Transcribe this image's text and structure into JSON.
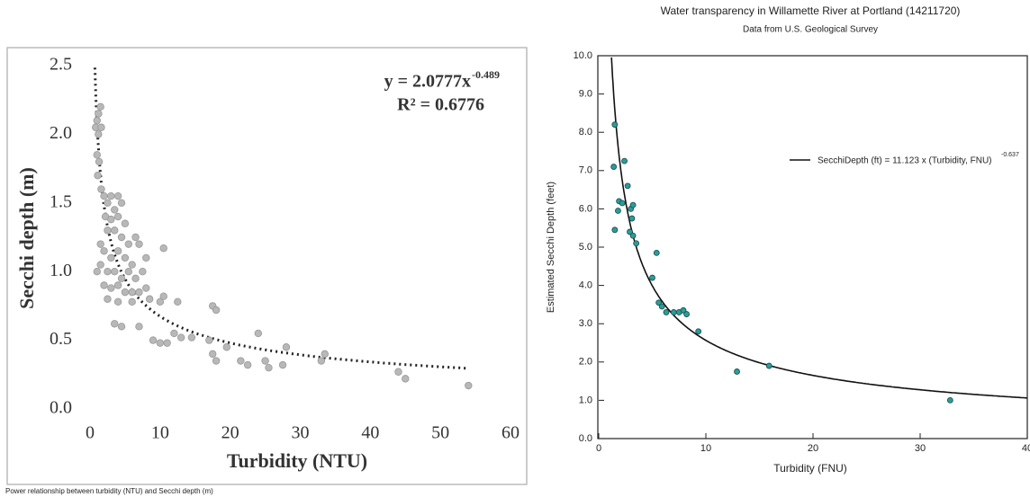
{
  "chart_data": [
    {
      "type": "scatter",
      "xlabel": "Turbidity (NTU)",
      "ylabel": "Secchi depth (m)",
      "caption": "Power relationship between turbidity (NTU) and Secchi depth (m)",
      "equation": "y = 2.0777x",
      "equation_exponent": "-0.489",
      "r_squared": "R² = 0.6776",
      "fit": {
        "coefficient": 2.0777,
        "exponent": -0.489
      },
      "xlim": [
        0,
        60
      ],
      "ylim": [
        0,
        2.5
      ],
      "xticks": [
        0,
        10,
        20,
        30,
        40,
        50,
        60
      ],
      "yticks": [
        {
          "value": 0,
          "label": "0.0"
        },
        0.5,
        {
          "value": 1,
          "label": "1.0"
        },
        1.5,
        {
          "value": 2,
          "label": "2.0"
        },
        2.5
      ],
      "x": [
        0.8,
        1.0,
        1.2,
        1.5,
        1.2,
        1.6,
        1.0,
        1.3,
        1.1,
        1.6,
        2.0,
        2.5,
        3.0,
        4.0,
        4.5,
        3.5,
        2.2,
        3.0,
        4.0,
        5.0,
        2.5,
        3.5,
        4.5,
        5.5,
        6.5,
        7.0,
        1.5,
        2.0,
        3.0,
        4.0,
        5.0,
        6.0,
        8.0,
        10.5,
        1.0,
        1.5,
        2.5,
        3.5,
        4.5,
        5.5,
        6.5,
        7.5,
        2.0,
        3.0,
        4.0,
        5.0,
        6.0,
        7.0,
        8.0,
        2.5,
        4.0,
        6.0,
        8.5,
        10.0,
        10.5,
        12.5,
        3.5,
        4.5,
        7.0,
        9.0,
        10.0,
        11.0,
        12.0,
        13.0,
        14.5,
        17.5,
        18.0,
        17.0,
        17.5,
        18.0,
        19.5,
        21.5,
        22.5,
        24.0,
        25.0,
        25.5,
        27.5,
        28.0,
        33.0,
        33.5,
        44.0,
        45.0,
        54.0
      ],
      "series": [
        {
          "color": "#b8b8b8",
          "values": [
            2.05,
            2.1,
            2.15,
            2.2,
            2.0,
            2.05,
            1.85,
            1.8,
            1.7,
            1.6,
            1.55,
            1.5,
            1.55,
            1.55,
            1.5,
            1.45,
            1.4,
            1.38,
            1.4,
            1.35,
            1.3,
            1.3,
            1.25,
            1.2,
            1.25,
            1.2,
            1.2,
            1.15,
            1.1,
            1.15,
            1.1,
            1.05,
            1.1,
            1.17,
            1.0,
            1.05,
            1.0,
            1.0,
            0.95,
            1.0,
            0.95,
            1.0,
            0.9,
            0.88,
            0.9,
            0.85,
            0.85,
            0.85,
            0.88,
            0.8,
            0.78,
            0.78,
            0.8,
            0.78,
            0.82,
            0.78,
            0.62,
            0.6,
            0.6,
            0.5,
            0.48,
            0.48,
            0.55,
            0.52,
            0.52,
            0.75,
            0.72,
            0.5,
            0.4,
            0.35,
            0.45,
            0.35,
            0.32,
            0.55,
            0.35,
            0.3,
            0.32,
            0.45,
            0.35,
            0.4,
            0.27,
            0.22,
            0.17
          ]
        }
      ]
    },
    {
      "type": "scatter",
      "title": "Water transparency in Willamette River at Portland (14211720)",
      "subtitle": "Data from U.S. Geological Survey",
      "xlabel": "Turbidity (FNU)",
      "ylabel": "Estimated Secchi Depth (feet)",
      "equation": "SecchiDepth (ft) = 11.123 x (Turbidity, FNU)",
      "equation_exponent": "-0.637",
      "fit": {
        "coefficient": 11.123,
        "exponent": -0.637
      },
      "xlim": [
        0,
        40
      ],
      "ylim": [
        0,
        10
      ],
      "xticks": [
        0,
        10,
        20,
        30,
        40
      ],
      "yticks": [
        {
          "value": 0,
          "label": "0.0"
        },
        {
          "value": 1,
          "label": "1.0"
        },
        {
          "value": 2,
          "label": "2.0"
        },
        {
          "value": 3,
          "label": "3.0"
        },
        {
          "value": 4,
          "label": "4.0"
        },
        {
          "value": 5,
          "label": "5.0"
        },
        {
          "value": 6,
          "label": "6.0"
        },
        {
          "value": 7,
          "label": "7.0"
        },
        {
          "value": 8,
          "label": "8.0"
        },
        {
          "value": 9,
          "label": "9.0"
        },
        {
          "value": 10,
          "label": "10.0"
        }
      ],
      "x": [
        1.5,
        1.4,
        2.4,
        1.5,
        1.9,
        2.2,
        1.8,
        2.7,
        3.0,
        3.1,
        3.2,
        2.9,
        3.2,
        3.5,
        5.4,
        5.0,
        5.6,
        5.9,
        6.3,
        7.0,
        7.5,
        7.9,
        8.2,
        9.3,
        12.9,
        15.9,
        32.8
      ],
      "series": [
        {
          "color": "#2a9d9a",
          "values": [
            8.2,
            7.1,
            7.25,
            5.45,
            6.2,
            6.15,
            5.95,
            6.6,
            6.0,
            5.75,
            6.1,
            5.4,
            5.3,
            5.1,
            4.85,
            4.2,
            3.55,
            3.45,
            3.3,
            3.3,
            3.3,
            3.35,
            3.25,
            2.8,
            1.75,
            1.9,
            1.0
          ]
        }
      ]
    }
  ]
}
